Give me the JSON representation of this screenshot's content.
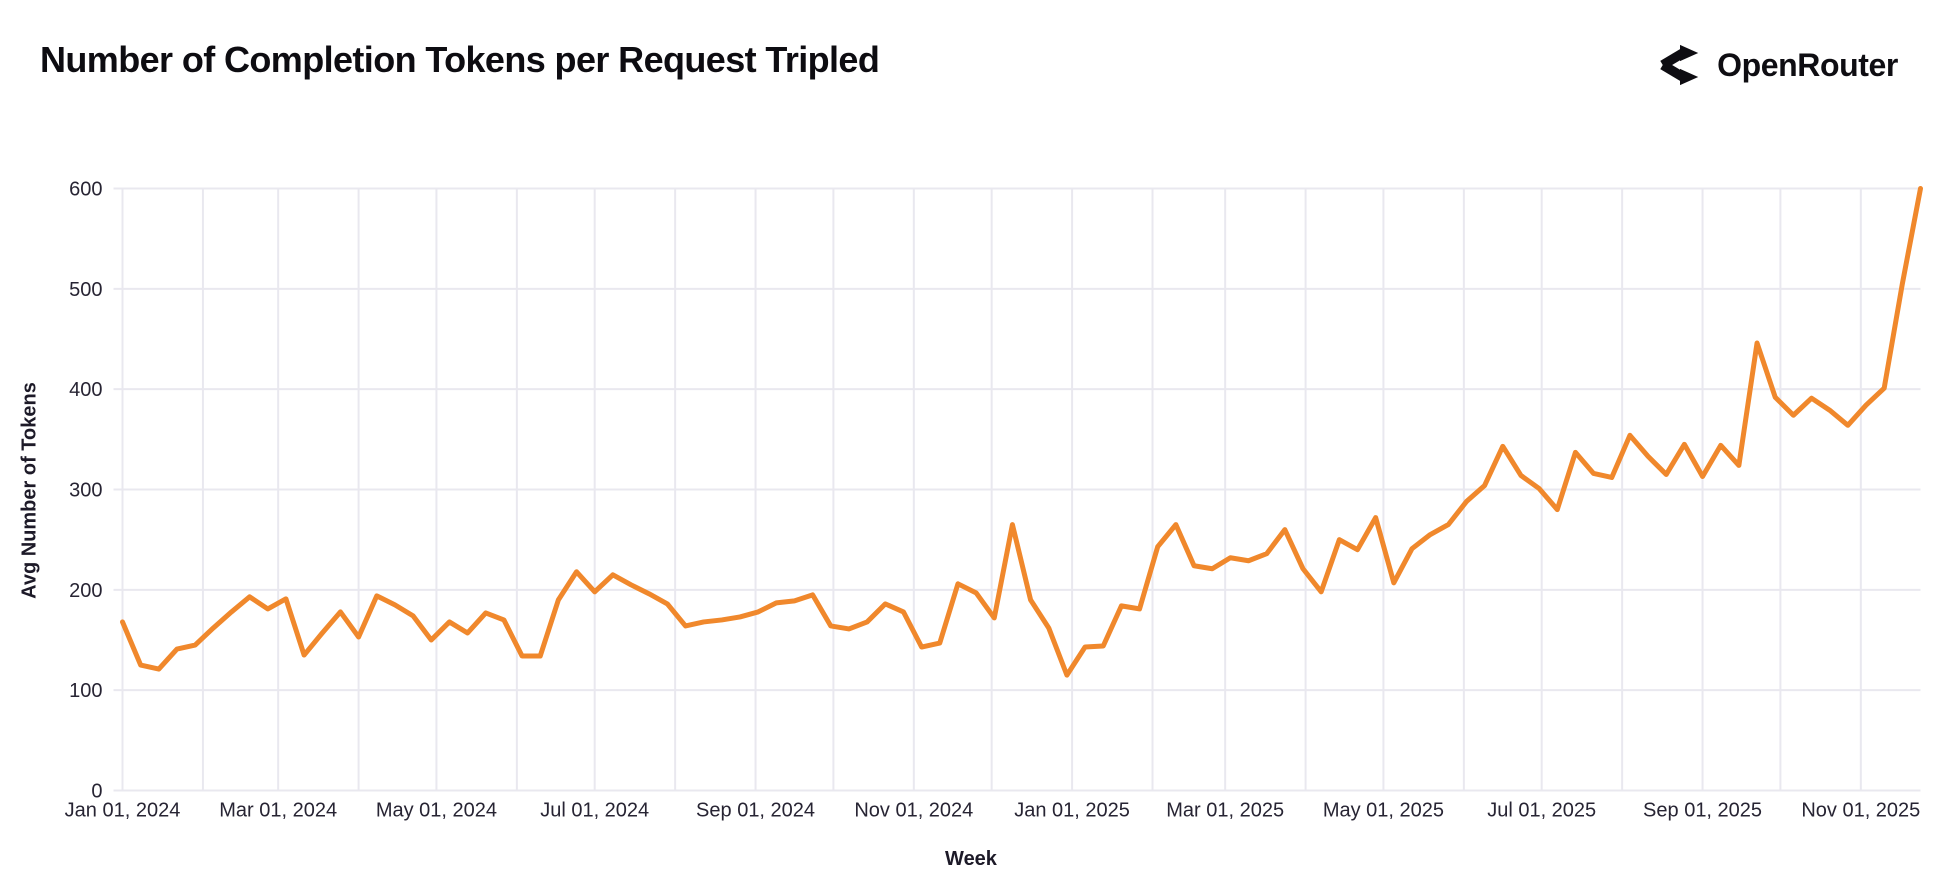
{
  "header": {
    "title": "Number of Completion Tokens per Request Tripled",
    "logo": {
      "icon": "openrouter-fork-icon",
      "text": "OpenRouter"
    }
  },
  "chart_data": {
    "type": "line",
    "title": "Number of Completion Tokens per Request Tripled",
    "xlabel": "Week",
    "ylabel": "Avg Number of Tokens",
    "legend": "none",
    "grid": true,
    "ylim": [
      0,
      600
    ],
    "y_ticks": [
      0,
      100,
      200,
      300,
      400,
      500,
      600
    ],
    "x_domain_days": [
      0,
      693
    ],
    "x_step_days": 7,
    "x_start_label": "Jan 01, 2024",
    "x_month_gridline_days": [
      0,
      31,
      60,
      91,
      121,
      152,
      182,
      213,
      244,
      274,
      305,
      335,
      366,
      397,
      425,
      456,
      486,
      517,
      547,
      578,
      609,
      639,
      670
    ],
    "x_ticks": [
      {
        "day": 0,
        "label": "Jan 01, 2024"
      },
      {
        "day": 60,
        "label": "Mar 01, 2024"
      },
      {
        "day": 121,
        "label": "May 01, 2024"
      },
      {
        "day": 182,
        "label": "Jul 01, 2024"
      },
      {
        "day": 244,
        "label": "Sep 01, 2024"
      },
      {
        "day": 305,
        "label": "Nov 01, 2024"
      },
      {
        "day": 366,
        "label": "Jan 01, 2025"
      },
      {
        "day": 425,
        "label": "Mar 01, 2025"
      },
      {
        "day": 486,
        "label": "May 01, 2025"
      },
      {
        "day": 547,
        "label": "Jul 01, 2025"
      },
      {
        "day": 609,
        "label": "Sep 01, 2025"
      },
      {
        "day": 670,
        "label": "Nov 01, 2025"
      }
    ],
    "series": [
      {
        "name": "Avg Number of Tokens",
        "color": "#F0882C",
        "values": [
          168,
          125,
          121,
          141,
          145,
          162,
          178,
          193,
          181,
          191,
          135,
          157,
          178,
          153,
          194,
          185,
          174,
          150,
          168,
          157,
          177,
          170,
          134,
          134,
          190,
          218,
          198,
          215,
          205,
          196,
          186,
          164,
          168,
          170,
          173,
          178,
          187,
          189,
          195,
          164,
          161,
          168,
          186,
          178,
          143,
          147,
          206,
          197,
          172,
          265,
          190,
          162,
          115,
          143,
          144,
          184,
          181,
          243,
          265,
          224,
          221,
          232,
          229,
          236,
          260,
          221,
          198,
          250,
          240,
          272,
          207,
          241,
          255,
          265,
          288,
          304,
          343,
          314,
          301,
          280,
          337,
          316,
          312,
          354,
          333,
          315,
          345,
          313,
          344,
          324,
          446,
          392,
          374,
          391,
          379,
          364,
          384,
          401,
          505,
          600
        ]
      }
    ],
    "colors": {
      "grid": "#e9e8ef",
      "axis_text": "#272433",
      "line": "#F0882C"
    }
  }
}
